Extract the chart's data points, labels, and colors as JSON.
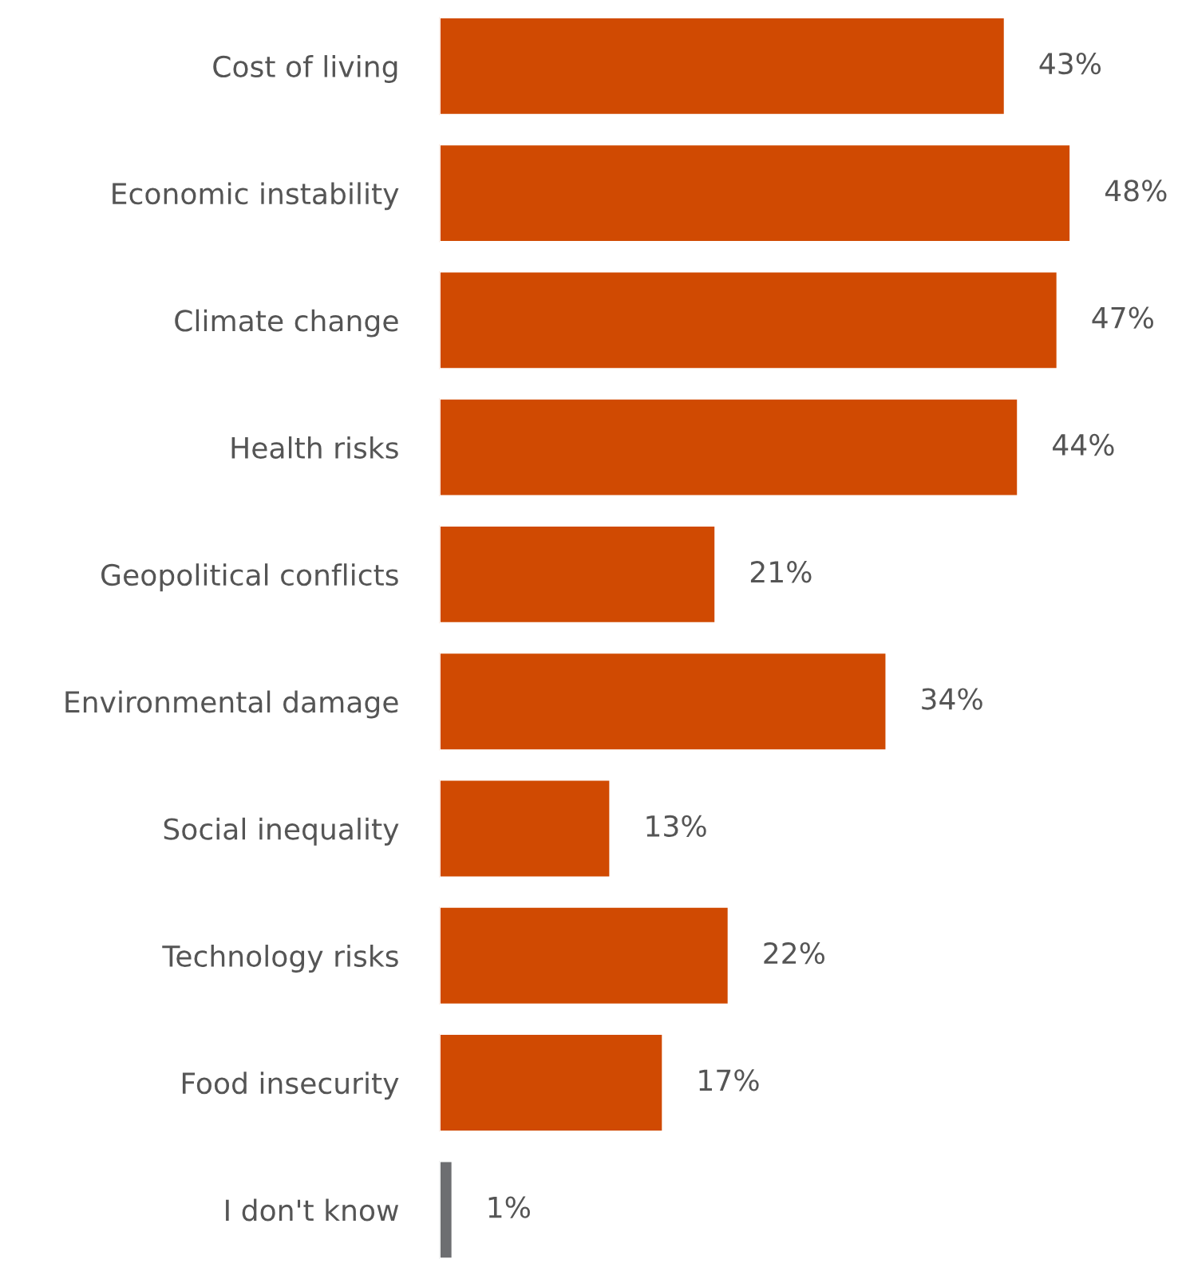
{
  "chart_data": {
    "type": "bar",
    "orientation": "horizontal",
    "categories": [
      "Cost of living",
      "Economic instability",
      "Climate change",
      "Health risks",
      "Geopolitical conflicts",
      "Environmental damage",
      "Social inequality",
      "Technology risks",
      "Food insecurity",
      "I don't know"
    ],
    "values": [
      43,
      48,
      47,
      44,
      21,
      34,
      13,
      22,
      17,
      1
    ],
    "value_labels": [
      "43%",
      "48%",
      "47%",
      "44%",
      "21%",
      "34%",
      "13%",
      "22%",
      "17%",
      "1%"
    ],
    "colors": [
      "#d04a02",
      "#d04a02",
      "#d04a02",
      "#d04a02",
      "#d04a02",
      "#d04a02",
      "#d04a02",
      "#d04a02",
      "#d04a02",
      "#6d6e71"
    ],
    "grid": false,
    "legend": false
  }
}
